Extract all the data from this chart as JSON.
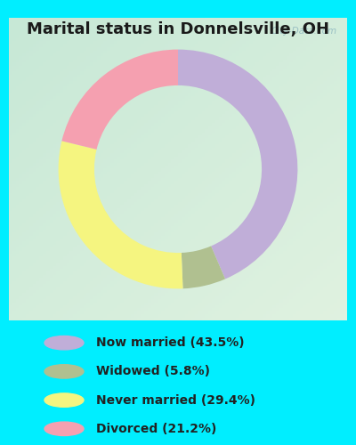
{
  "title": "Marital status in Donnelsville, OH",
  "slices": [
    43.5,
    5.8,
    29.4,
    21.2
  ],
  "labels": [
    "Now married (43.5%)",
    "Widowed (5.8%)",
    "Never married (29.4%)",
    "Divorced (21.2%)"
  ],
  "colors": [
    "#c0aed8",
    "#b0c090",
    "#f5f580",
    "#f5a0b0"
  ],
  "legend_colors": [
    "#c0aed8",
    "#b0c090",
    "#f5f580",
    "#f5a0b0"
  ],
  "background_outer": "#00eeff",
  "background_inner_tl": "#d0ead8",
  "background_inner_br": "#e8f5e0",
  "title_fontsize": 13,
  "title_fontweight": "bold",
  "watermark": "City-Data.com",
  "start_angle": 90,
  "donut_width": 0.3,
  "legend_fontsize": 10
}
